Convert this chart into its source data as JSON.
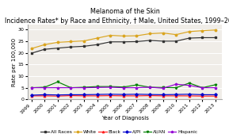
{
  "title_line1": "Melanoma of the Skin",
  "title_line2": "Incidence Rates* by Race and Ethnicity, † Male, United States, 1999–2013ᵒᵒ",
  "xlabel": "Year of Diagnosis",
  "ylabel": "Rate per 100,000",
  "years": [
    1999,
    2000,
    2001,
    2002,
    2003,
    2004,
    2005,
    2006,
    2007,
    2008,
    2009,
    2010,
    2011,
    2012,
    2013
  ],
  "series": {
    "All Races": {
      "color": "#333333",
      "marker": "s",
      "values": [
        19.8,
        21.5,
        22.0,
        22.5,
        22.8,
        23.5,
        24.7,
        24.7,
        24.8,
        25.3,
        25.0,
        25.0,
        26.3,
        26.5,
        26.5
      ]
    },
    "White": {
      "color": "#DAA520",
      "marker": "o",
      "values": [
        21.8,
        23.5,
        24.5,
        24.8,
        25.1,
        26.3,
        27.5,
        27.2,
        27.3,
        28.2,
        28.5,
        27.8,
        29.1,
        29.5,
        29.8
      ]
    },
    "Black": {
      "color": "#FF2020",
      "marker": "^",
      "values": [
        1.5,
        1.5,
        1.4,
        1.6,
        1.5,
        1.5,
        1.6,
        1.5,
        1.5,
        1.6,
        1.5,
        1.5,
        1.5,
        1.4,
        1.4
      ]
    },
    "A/PI": {
      "color": "#0000CC",
      "marker": "D",
      "values": [
        1.8,
        2.0,
        1.9,
        2.0,
        2.0,
        2.1,
        2.2,
        2.1,
        2.2,
        2.1,
        2.0,
        2.1,
        2.2,
        2.0,
        2.0
      ]
    },
    "AI/AN": {
      "color": "#008000",
      "marker": "v",
      "values": [
        5.0,
        5.2,
        7.5,
        5.0,
        5.2,
        5.5,
        5.5,
        5.3,
        6.2,
        5.2,
        5.1,
        5.0,
        7.0,
        5.0,
        6.3
      ]
    },
    "Hispanic": {
      "color": "#9400D3",
      "marker": "p",
      "values": [
        5.0,
        5.0,
        5.0,
        5.0,
        5.0,
        5.1,
        5.2,
        5.0,
        5.0,
        5.2,
        4.8,
        6.5,
        6.0,
        5.0,
        5.0
      ]
    }
  },
  "ylim": [
    0,
    32
  ],
  "yticks": [
    0,
    5,
    10,
    15,
    20,
    25,
    30
  ],
  "plot_bg": "#f0ede8",
  "fig_bg": "#ffffff",
  "title_fontsize": 5.8,
  "axis_label_fontsize": 5.0,
  "tick_fontsize": 4.5,
  "legend_fontsize": 4.2
}
